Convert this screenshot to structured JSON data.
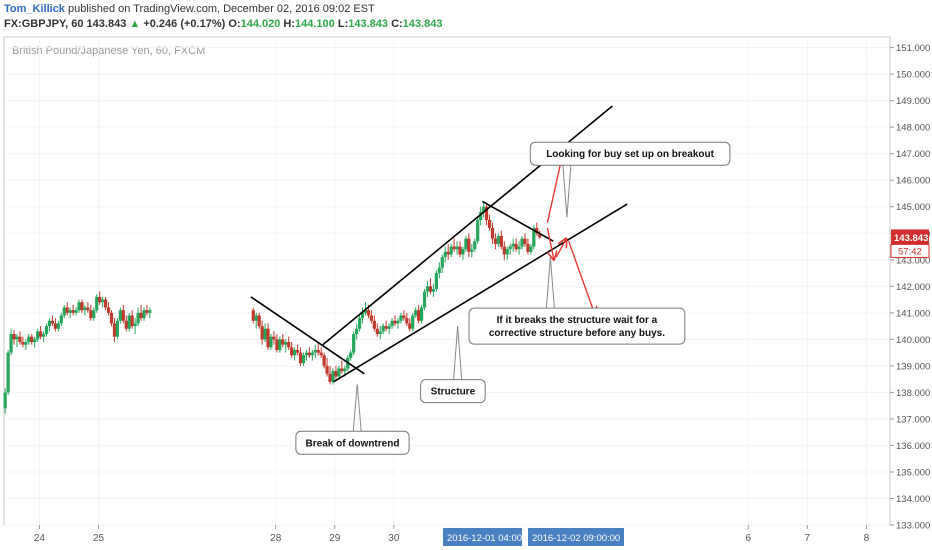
{
  "header": {
    "author": "Tom_Killick",
    "published": "published on TradingView.com, December 02, 2016 09:02 EST",
    "symbol_line": {
      "symbol": "FX:GBPJPY, 60",
      "last": "143.843",
      "change": "+0.246 (+0.17%)",
      "open_label": "O:",
      "open": "144.020",
      "high_label": "H:",
      "high": "144.100",
      "low_label": "L:",
      "low": "143.843",
      "close_label": "C:",
      "close": "143.843"
    }
  },
  "chart_data": {
    "type": "candlestick",
    "instrument_label": "British Pound/Japanese Yen, 60, FXCM",
    "y_ticks": [
      133.0,
      134.0,
      135.0,
      136.0,
      137.0,
      138.0,
      139.0,
      140.0,
      141.0,
      142.0,
      143.0,
      144.0,
      145.0,
      146.0,
      147.0,
      148.0,
      149.0,
      150.0,
      151.0
    ],
    "ylim": [
      133.0,
      151.4
    ],
    "x_ticks": [
      {
        "label": "24",
        "day": 24
      },
      {
        "label": "25",
        "day": 25
      },
      {
        "label": "28",
        "day": 28
      },
      {
        "label": "29",
        "day": 29
      },
      {
        "label": "30",
        "day": 30
      },
      {
        "label": "6",
        "day": 36
      },
      {
        "label": "7",
        "day": 37
      },
      {
        "label": "8",
        "day": 38
      }
    ],
    "x_crosshair_labels": [
      "2016-12-01 04:00:00",
      "2016-12-02 09:00:00"
    ],
    "price_badge": {
      "price": "143.843",
      "countdown": "57:42",
      "color": "#d32f2f"
    },
    "colors": {
      "up": "#26a65b",
      "down": "#c0392b",
      "annotation_arrow": "#e53935",
      "line": "#000000"
    },
    "candles": [
      [
        23.42,
        137.4,
        138.15,
        137.2,
        138.0
      ],
      [
        23.47,
        138.0,
        139.6,
        137.9,
        139.5
      ],
      [
        23.52,
        139.5,
        140.4,
        139.4,
        140.2
      ],
      [
        23.57,
        140.2,
        140.35,
        139.8,
        140.0
      ],
      [
        23.62,
        140.0,
        140.2,
        139.7,
        140.1
      ],
      [
        23.67,
        140.1,
        140.3,
        139.8,
        139.9
      ],
      [
        23.72,
        139.9,
        140.1,
        139.7,
        139.8
      ],
      [
        23.77,
        139.8,
        140.0,
        139.6,
        139.9
      ],
      [
        23.82,
        139.9,
        140.2,
        139.8,
        140.1
      ],
      [
        23.87,
        140.1,
        140.2,
        139.8,
        139.9
      ],
      [
        23.92,
        139.9,
        140.1,
        139.7,
        140.0
      ],
      [
        23.97,
        140.0,
        140.4,
        139.9,
        140.3
      ],
      [
        24.02,
        140.3,
        140.5,
        140.0,
        140.1
      ],
      [
        24.07,
        140.1,
        140.3,
        139.9,
        140.2
      ],
      [
        24.12,
        140.2,
        140.6,
        140.1,
        140.5
      ],
      [
        24.17,
        140.5,
        140.8,
        140.3,
        140.7
      ],
      [
        24.22,
        140.7,
        140.9,
        140.5,
        140.6
      ],
      [
        24.27,
        140.6,
        140.8,
        140.3,
        140.4
      ],
      [
        24.32,
        140.4,
        140.7,
        140.3,
        140.6
      ],
      [
        24.37,
        140.6,
        141.0,
        140.5,
        140.9
      ],
      [
        24.42,
        140.9,
        141.3,
        140.8,
        141.2
      ],
      [
        24.47,
        141.2,
        141.4,
        140.9,
        141.0
      ],
      [
        24.52,
        141.0,
        141.2,
        140.8,
        141.1
      ],
      [
        24.57,
        141.1,
        141.3,
        140.9,
        141.0
      ],
      [
        24.62,
        141.0,
        141.2,
        140.9,
        141.1
      ],
      [
        24.67,
        141.1,
        141.5,
        141.0,
        141.4
      ],
      [
        24.72,
        141.4,
        141.5,
        141.0,
        141.1
      ],
      [
        24.77,
        141.1,
        141.3,
        140.9,
        141.2
      ],
      [
        24.82,
        141.2,
        141.4,
        141.0,
        141.1
      ],
      [
        24.87,
        141.1,
        141.3,
        140.7,
        140.8
      ],
      [
        24.92,
        140.8,
        141.2,
        140.7,
        141.1
      ],
      [
        24.97,
        141.1,
        141.7,
        141.0,
        141.6
      ],
      [
        25.02,
        141.6,
        141.8,
        141.3,
        141.4
      ],
      [
        25.07,
        141.4,
        141.6,
        141.2,
        141.5
      ],
      [
        25.12,
        141.5,
        141.6,
        141.1,
        141.2
      ],
      [
        25.17,
        141.2,
        141.4,
        140.9,
        141.0
      ],
      [
        25.22,
        141.0,
        141.1,
        140.5,
        140.6
      ],
      [
        25.27,
        140.6,
        140.8,
        139.9,
        140.1
      ],
      [
        25.32,
        140.1,
        140.8,
        140.0,
        140.7
      ],
      [
        25.37,
        140.7,
        141.2,
        140.6,
        141.1
      ],
      [
        25.42,
        141.1,
        141.3,
        140.6,
        140.7
      ],
      [
        25.47,
        140.7,
        140.9,
        140.3,
        140.4
      ],
      [
        25.52,
        140.4,
        141.0,
        140.3,
        140.9
      ],
      [
        25.57,
        140.9,
        141.1,
        140.4,
        140.5
      ],
      [
        25.62,
        140.5,
        140.8,
        140.2,
        140.6
      ],
      [
        25.67,
        140.6,
        141.2,
        140.5,
        141.0
      ],
      [
        25.72,
        141.0,
        141.3,
        140.7,
        140.8
      ],
      [
        25.77,
        140.8,
        141.2,
        140.7,
        141.1
      ],
      [
        25.82,
        141.1,
        141.3,
        140.9,
        141.0
      ],
      [
        25.87,
        141.0,
        141.2,
        140.8,
        141.1
      ],
      [
        27.62,
        141.1,
        141.2,
        140.6,
        140.7
      ],
      [
        27.67,
        140.7,
        141.0,
        140.4,
        140.9
      ],
      [
        27.72,
        140.9,
        141.0,
        140.4,
        140.5
      ],
      [
        27.77,
        140.5,
        140.7,
        139.8,
        140.0
      ],
      [
        27.82,
        140.0,
        140.6,
        139.9,
        140.4
      ],
      [
        27.87,
        140.4,
        140.6,
        139.6,
        139.7
      ],
      [
        27.92,
        139.7,
        140.2,
        139.6,
        140.1
      ],
      [
        27.97,
        140.1,
        140.3,
        139.8,
        140.0
      ],
      [
        28.02,
        140.0,
        140.2,
        139.5,
        139.6
      ],
      [
        28.07,
        139.6,
        140.1,
        139.5,
        140.0
      ],
      [
        28.12,
        140.0,
        140.2,
        139.7,
        139.8
      ],
      [
        28.17,
        139.8,
        140.0,
        139.5,
        139.9
      ],
      [
        28.22,
        139.9,
        140.1,
        139.6,
        139.7
      ],
      [
        28.27,
        139.7,
        139.9,
        139.3,
        139.4
      ],
      [
        28.32,
        139.4,
        139.7,
        139.2,
        139.6
      ],
      [
        28.37,
        139.6,
        139.8,
        139.4,
        139.5
      ],
      [
        28.42,
        139.5,
        139.7,
        139.0,
        139.1
      ],
      [
        28.47,
        139.1,
        139.5,
        139.0,
        139.4
      ],
      [
        28.52,
        139.4,
        139.6,
        139.2,
        139.5
      ],
      [
        28.57,
        139.5,
        139.7,
        139.3,
        139.4
      ],
      [
        28.62,
        139.4,
        139.6,
        139.2,
        139.5
      ],
      [
        28.67,
        139.5,
        139.8,
        139.3,
        139.6
      ],
      [
        28.72,
        139.6,
        139.9,
        139.4,
        139.5
      ],
      [
        28.77,
        139.5,
        139.7,
        139.3,
        139.4
      ],
      [
        28.82,
        139.4,
        139.5,
        138.9,
        139.0
      ],
      [
        28.87,
        139.0,
        139.3,
        138.6,
        138.7
      ],
      [
        28.92,
        138.7,
        139.0,
        138.3,
        138.4
      ],
      [
        28.97,
        138.4,
        138.9,
        138.3,
        138.8
      ],
      [
        29.02,
        138.8,
        139.0,
        138.5,
        138.6
      ],
      [
        29.07,
        138.6,
        139.0,
        138.5,
        138.9
      ],
      [
        29.12,
        138.9,
        139.2,
        138.7,
        138.8
      ],
      [
        29.17,
        138.8,
        139.0,
        138.6,
        138.9
      ],
      [
        29.22,
        138.9,
        139.4,
        138.8,
        139.3
      ],
      [
        29.27,
        139.3,
        139.6,
        139.2,
        139.5
      ],
      [
        29.32,
        139.5,
        140.3,
        139.4,
        140.2
      ],
      [
        29.37,
        140.2,
        140.6,
        140.0,
        140.4
      ],
      [
        29.42,
        140.4,
        140.9,
        140.3,
        140.8
      ],
      [
        29.47,
        140.8,
        141.2,
        140.6,
        141.0
      ],
      [
        29.52,
        141.0,
        141.4,
        140.9,
        141.1
      ],
      [
        29.57,
        141.1,
        141.3,
        140.8,
        140.9
      ],
      [
        29.62,
        140.9,
        141.1,
        140.6,
        140.7
      ],
      [
        29.67,
        140.7,
        140.9,
        140.3,
        140.4
      ],
      [
        29.72,
        140.4,
        140.6,
        140.1,
        140.2
      ],
      [
        29.77,
        140.2,
        140.5,
        140.0,
        140.3
      ],
      [
        29.82,
        140.3,
        140.6,
        140.2,
        140.5
      ],
      [
        29.87,
        140.5,
        140.7,
        140.3,
        140.4
      ],
      [
        29.92,
        140.4,
        140.6,
        140.2,
        140.5
      ],
      [
        29.97,
        140.5,
        140.8,
        140.4,
        140.7
      ],
      [
        30.02,
        140.7,
        140.9,
        140.5,
        140.6
      ],
      [
        30.07,
        140.6,
        140.8,
        140.4,
        140.7
      ],
      [
        30.12,
        140.7,
        141.0,
        140.6,
        140.9
      ],
      [
        30.17,
        140.9,
        141.1,
        140.7,
        140.8
      ],
      [
        30.22,
        140.8,
        141.0,
        140.5,
        140.6
      ],
      [
        30.27,
        140.6,
        140.8,
        140.3,
        140.4
      ],
      [
        30.32,
        140.4,
        141.0,
        140.3,
        140.9
      ],
      [
        30.37,
        140.9,
        141.2,
        140.8,
        141.1
      ],
      [
        30.42,
        141.1,
        141.3,
        140.6,
        140.7
      ],
      [
        30.47,
        140.7,
        141.3,
        140.6,
        141.2
      ],
      [
        30.52,
        141.2,
        141.9,
        141.1,
        141.8
      ],
      [
        30.57,
        141.8,
        142.2,
        141.6,
        142.0
      ],
      [
        30.62,
        142.0,
        142.3,
        141.7,
        141.8
      ],
      [
        30.67,
        141.8,
        142.1,
        141.6,
        141.9
      ],
      [
        30.72,
        141.9,
        142.6,
        141.8,
        142.5
      ],
      [
        30.77,
        142.5,
        142.9,
        142.3,
        142.7
      ],
      [
        30.82,
        142.7,
        143.2,
        142.5,
        143.1
      ],
      [
        30.87,
        143.1,
        143.5,
        142.9,
        143.3
      ],
      [
        30.92,
        143.3,
        143.6,
        143.0,
        143.2
      ],
      [
        30.97,
        143.2,
        143.6,
        143.1,
        143.5
      ],
      [
        31.02,
        143.5,
        143.8,
        143.3,
        143.4
      ],
      [
        31.07,
        143.4,
        143.7,
        143.2,
        143.5
      ],
      [
        31.12,
        143.5,
        143.7,
        143.1,
        143.2
      ],
      [
        31.17,
        143.2,
        143.5,
        143.0,
        143.4
      ],
      [
        31.22,
        143.4,
        143.9,
        143.3,
        143.8
      ],
      [
        31.27,
        143.8,
        144.0,
        143.1,
        143.3
      ],
      [
        31.32,
        143.3,
        143.6,
        143.1,
        143.4
      ],
      [
        31.37,
        143.4,
        143.8,
        143.3,
        143.7
      ],
      [
        31.42,
        143.7,
        144.6,
        143.6,
        144.5
      ],
      [
        31.47,
        144.5,
        145.0,
        144.3,
        144.8
      ],
      [
        31.52,
        144.8,
        145.2,
        144.6,
        145.0
      ],
      [
        31.57,
        145.0,
        145.1,
        144.3,
        144.5
      ],
      [
        31.62,
        144.5,
        144.7,
        144.1,
        144.2
      ],
      [
        31.67,
        144.2,
        144.4,
        143.6,
        143.8
      ],
      [
        31.72,
        143.8,
        144.0,
        143.4,
        143.6
      ],
      [
        31.77,
        143.6,
        144.0,
        143.5,
        143.9
      ],
      [
        31.82,
        143.9,
        144.1,
        143.4,
        143.5
      ],
      [
        31.87,
        143.5,
        143.7,
        143.0,
        143.2
      ],
      [
        31.92,
        143.2,
        143.5,
        143.0,
        143.4
      ],
      [
        31.97,
        143.4,
        143.6,
        143.2,
        143.5
      ],
      [
        32.02,
        143.5,
        143.8,
        143.3,
        143.6
      ],
      [
        32.07,
        143.6,
        143.8,
        143.3,
        143.4
      ],
      [
        32.12,
        143.4,
        143.7,
        143.2,
        143.5
      ],
      [
        32.17,
        143.5,
        143.9,
        143.4,
        143.8
      ],
      [
        32.22,
        143.8,
        144.0,
        143.5,
        143.6
      ],
      [
        32.27,
        143.6,
        143.8,
        143.2,
        143.3
      ],
      [
        32.32,
        143.3,
        143.6,
        143.2,
        143.5
      ],
      [
        32.37,
        143.5,
        144.3,
        143.4,
        144.2
      ],
      [
        32.42,
        144.2,
        144.4,
        143.9,
        144.0
      ],
      [
        32.47,
        144.0,
        144.1,
        143.8,
        143.843
      ]
    ],
    "trendlines": [
      {
        "name": "downtrend",
        "points": [
          [
            27.58,
            141.6
          ],
          [
            29.5,
            138.7
          ]
        ]
      },
      {
        "name": "channel-lower",
        "points": [
          [
            28.98,
            138.4
          ],
          [
            33.95,
            145.1
          ]
        ]
      },
      {
        "name": "channel-upper",
        "points": [
          [
            28.8,
            139.8
          ],
          [
            33.7,
            148.8
          ]
        ]
      },
      {
        "name": "flag-top",
        "points": [
          [
            31.5,
            145.2
          ],
          [
            32.7,
            143.7
          ]
        ]
      }
    ],
    "annotations": [
      {
        "text": "Break of downtrend",
        "box_day": 29.3,
        "box_price": 136.1,
        "anchor": [
          29.38,
          138.3
        ]
      },
      {
        "text": "Structure",
        "box_day": 31.0,
        "box_price": 138.05,
        "anchor": [
          31.08,
          140.5
        ]
      },
      {
        "text": [
          "If it breaks the structure wait for a",
          "corrective structure before any buys."
        ],
        "box_day": 33.1,
        "box_price": 140.5,
        "anchor": [
          32.65,
          143.1
        ]
      },
      {
        "text": "Looking for buy set up on breakout",
        "box_day": 34.0,
        "box_price": 147.0,
        "anchor": [
          32.93,
          144.6
        ]
      }
    ],
    "arrows": [
      {
        "from": [
          32.6,
          144.4
        ],
        "to": [
          32.9,
          147.4
        ]
      },
      {
        "from": [
          32.6,
          144.2
        ],
        "to": [
          32.71,
          143.0
        ]
      },
      {
        "from": [
          32.75,
          143.1
        ],
        "to": [
          32.92,
          143.8
        ]
      },
      {
        "from": [
          32.96,
          143.7
        ],
        "to": [
          33.41,
          140.9
        ]
      }
    ]
  }
}
